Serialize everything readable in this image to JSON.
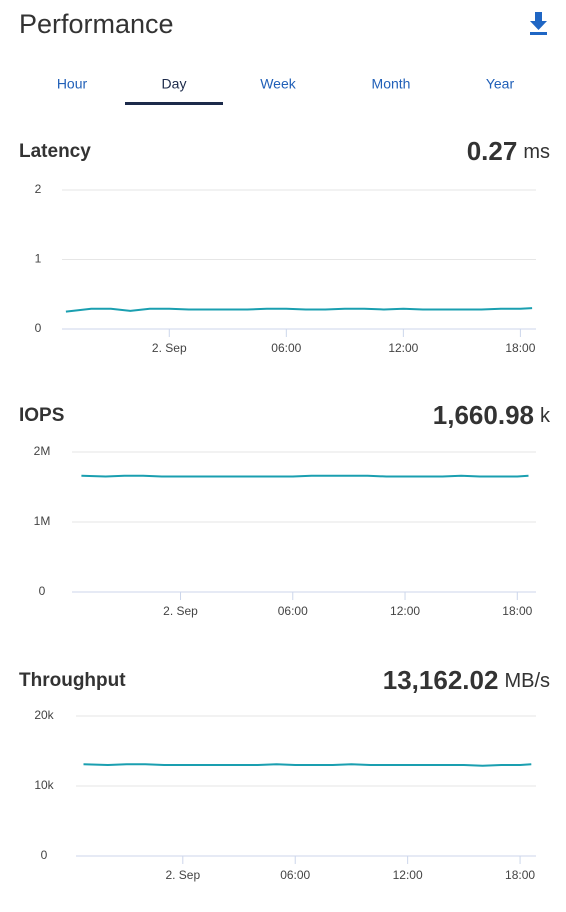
{
  "header": {
    "title": "Performance"
  },
  "tabs": {
    "items": [
      "Hour",
      "Day",
      "Week",
      "Month",
      "Year"
    ],
    "active": 1
  },
  "chart_data": [
    {
      "type": "line",
      "title": "Latency",
      "value": "0.27",
      "unit": "ms",
      "color": "#1a9fb0",
      "x": [
        -5.3,
        -4,
        -3,
        -2,
        -1,
        0,
        1,
        2,
        3,
        4,
        5,
        6,
        7,
        8,
        9,
        10,
        11,
        12,
        13,
        14,
        15,
        16,
        17,
        18,
        18.6
      ],
      "values": [
        0.25,
        0.29,
        0.29,
        0.26,
        0.29,
        0.29,
        0.28,
        0.28,
        0.28,
        0.28,
        0.29,
        0.29,
        0.28,
        0.28,
        0.29,
        0.29,
        0.28,
        0.29,
        0.28,
        0.28,
        0.28,
        0.28,
        0.29,
        0.29,
        0.3
      ],
      "xlim": [
        -5.5,
        18.8
      ],
      "xticks": [
        {
          "value": 0,
          "label": "2. Sep"
        },
        {
          "value": 6,
          "label": "06:00"
        },
        {
          "value": 12,
          "label": "12:00"
        },
        {
          "value": 18,
          "label": "18:00"
        }
      ],
      "ylim": [
        0,
        2
      ],
      "yticks": [
        0,
        1,
        2
      ],
      "grid": true
    },
    {
      "type": "line",
      "title": "IOPS",
      "value": "1,660.98",
      "unit": "k",
      "color": "#1a9fb0",
      "x": [
        -5.3,
        -4,
        -3,
        -2,
        -1,
        0,
        1,
        2,
        3,
        4,
        5,
        6,
        7,
        8,
        9,
        10,
        11,
        12,
        13,
        14,
        15,
        16,
        17,
        18,
        18.6
      ],
      "values": [
        1660000,
        1650000,
        1660000,
        1660000,
        1650000,
        1650000,
        1650000,
        1650000,
        1650000,
        1650000,
        1650000,
        1650000,
        1660000,
        1660000,
        1660000,
        1660000,
        1650000,
        1650000,
        1650000,
        1650000,
        1660000,
        1650000,
        1650000,
        1650000,
        1660000
      ],
      "xlim": [
        -5.8,
        19
      ],
      "xticks": [
        {
          "value": 0,
          "label": "2. Sep"
        },
        {
          "value": 6,
          "label": "06:00"
        },
        {
          "value": 12,
          "label": "12:00"
        },
        {
          "value": 18,
          "label": "18:00"
        }
      ],
      "ylim": [
        0,
        2000000
      ],
      "yticks": [
        0,
        {
          "value": 1000000,
          "label": "1M"
        },
        {
          "value": 2000000,
          "label": "2M"
        }
      ],
      "grid": true
    },
    {
      "type": "line",
      "title": "Throughput",
      "value": "13,162.02",
      "unit": "MB/s",
      "color": "#1a9fb0",
      "x": [
        -5.3,
        -4,
        -3,
        -2,
        -1,
        0,
        1,
        2,
        3,
        4,
        5,
        6,
        7,
        8,
        9,
        10,
        11,
        12,
        13,
        14,
        15,
        16,
        17,
        18,
        18.6
      ],
      "values": [
        13100,
        13000,
        13100,
        13100,
        13000,
        13000,
        13000,
        13000,
        13000,
        13000,
        13100,
        13000,
        13000,
        13000,
        13100,
        13000,
        13000,
        13000,
        13000,
        13000,
        13000,
        12900,
        13000,
        13000,
        13100
      ],
      "xlim": [
        -5.7,
        18.85
      ],
      "xticks": [
        {
          "value": 0,
          "label": "2. Sep"
        },
        {
          "value": 6,
          "label": "06:00"
        },
        {
          "value": 12,
          "label": "12:00"
        },
        {
          "value": 18,
          "label": "18:00"
        }
      ],
      "ylim": [
        0,
        20000
      ],
      "yticks": [
        0,
        {
          "value": 10000,
          "label": "10k"
        },
        {
          "value": 20000,
          "label": "20k"
        }
      ],
      "grid": true
    }
  ]
}
